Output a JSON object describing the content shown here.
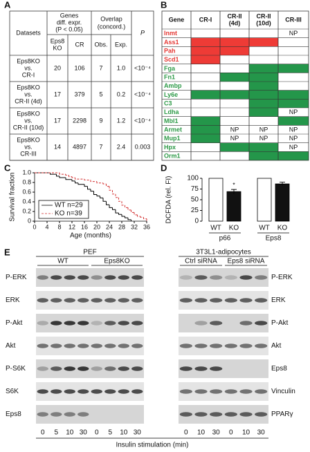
{
  "panel_labels": [
    "A",
    "B",
    "C",
    "D",
    "E"
  ],
  "table_a": {
    "header": {
      "datasets": "Datasets",
      "genes": [
        "Genes",
        "diff. expr.",
        "(P < 0.05)"
      ],
      "overlap": [
        "Overlap",
        "(concord.)"
      ],
      "p": "P",
      "sub": [
        [
          "Eps8",
          "KO"
        ],
        [
          "CR"
        ],
        [
          "Obs."
        ],
        [
          "Exp."
        ]
      ]
    },
    "rows": [
      {
        "dataset": [
          "Eps8KO",
          "vs.",
          "CR-I"
        ],
        "cells": [
          "20",
          "106",
          "7",
          "1.0",
          "<10⁻⁴"
        ]
      },
      {
        "dataset": [
          "Eps8KO",
          "vs.",
          "CR-II (4d)"
        ],
        "cells": [
          "17",
          "379",
          "5",
          "0.2",
          "<10⁻⁴"
        ]
      },
      {
        "dataset": [
          "Eps8KO",
          "vs.",
          "CR-II (10d)"
        ],
        "cells": [
          "17",
          "2298",
          "9",
          "1.2",
          "<10⁻⁴"
        ]
      },
      {
        "dataset": [
          "Eps8KO",
          "vs.",
          "CR-III"
        ],
        "cells": [
          "14",
          "4897",
          "7",
          "2.4",
          "0.003"
        ]
      }
    ]
  },
  "table_b": {
    "header": [
      [
        "Gene"
      ],
      [
        "CR-I"
      ],
      [
        "CR-II",
        "(4d)"
      ],
      [
        "CR-II",
        "(10d)"
      ],
      [
        "CR-III"
      ]
    ],
    "rows": [
      {
        "gene": "Inmt",
        "color": "#e53935",
        "cells": [
          null,
          null,
          null,
          "NP"
        ],
        "fills": [
          null,
          null,
          null,
          null
        ]
      },
      {
        "gene": "Ass1",
        "color": "#e53935",
        "cells": [
          null,
          null,
          null,
          null
        ],
        "fills": [
          "#ee3b36",
          "#ee3b36",
          "#ee3b36",
          null
        ]
      },
      {
        "gene": "Pah",
        "color": "#e53935",
        "cells": [
          null,
          null,
          null,
          null
        ],
        "fills": [
          "#ee3b36",
          "#ee3b36",
          null,
          null
        ]
      },
      {
        "gene": "Scd1",
        "color": "#e53935",
        "cells": [
          null,
          null,
          null,
          null
        ],
        "fills": [
          "#ee3b36",
          null,
          null,
          null
        ]
      },
      {
        "gene": "Fga",
        "color": "#2e9a48",
        "cells": [
          null,
          null,
          null,
          null
        ],
        "fills": [
          null,
          null,
          "#24964a",
          "#24964a"
        ]
      },
      {
        "gene": "Fn1",
        "color": "#2e9a48",
        "cells": [
          null,
          null,
          null,
          null
        ],
        "fills": [
          null,
          "#24964a",
          "#24964a",
          null
        ]
      },
      {
        "gene": "Ambp",
        "color": "#2e9a48",
        "cells": [
          null,
          null,
          null,
          null
        ],
        "fills": [
          null,
          null,
          "#24964a",
          null
        ]
      },
      {
        "gene": "Ly6e",
        "color": "#2e9a48",
        "cells": [
          null,
          null,
          null,
          null
        ],
        "fills": [
          "#24964a",
          "#24964a",
          "#24964a",
          "#24964a"
        ]
      },
      {
        "gene": "C3",
        "color": "#2e9a48",
        "cells": [
          null,
          null,
          null,
          null
        ],
        "fills": [
          null,
          null,
          "#24964a",
          "#24964a"
        ]
      },
      {
        "gene": "Ldha",
        "color": "#2e9a48",
        "cells": [
          null,
          null,
          null,
          "NP"
        ],
        "fills": [
          null,
          null,
          "#24964a",
          null
        ]
      },
      {
        "gene": "Mbl1",
        "color": "#2e9a48",
        "cells": [
          null,
          null,
          null,
          null
        ],
        "fills": [
          "#24964a",
          null,
          null,
          "#24964a"
        ]
      },
      {
        "gene": "Armet",
        "color": "#2e9a48",
        "cells": [
          null,
          "NP",
          "NP",
          "NP"
        ],
        "fills": [
          "#24964a",
          null,
          null,
          null
        ]
      },
      {
        "gene": "Mup1",
        "color": "#2e9a48",
        "cells": [
          null,
          "NP",
          "NP",
          "NP"
        ],
        "fills": [
          "#24964a",
          null,
          null,
          null
        ]
      },
      {
        "gene": "Hpx",
        "color": "#2e9a48",
        "cells": [
          null,
          null,
          null,
          "NP"
        ],
        "fills": [
          null,
          "#24964a",
          "#24964a",
          null
        ]
      },
      {
        "gene": "Orm1",
        "color": "#2e9a48",
        "cells": [
          null,
          null,
          null,
          null
        ],
        "fills": [
          null,
          null,
          "#24964a",
          "#24964a"
        ]
      }
    ]
  },
  "chart_data": [
    {
      "type": "line",
      "step": true,
      "xlabel": "Age (months)",
      "ylabel": "Survival fraction",
      "xlim": [
        0,
        36
      ],
      "xticks": [
        0,
        4,
        8,
        12,
        16,
        20,
        24,
        28,
        32,
        36
      ],
      "ylim": [
        0,
        1
      ],
      "yticks": [
        0,
        0.2,
        0.4,
        0.6,
        0.8,
        {
          "value": 1,
          "label": "1.0"
        }
      ],
      "legend": "bottom-left",
      "series": [
        {
          "name": "WT n=29",
          "color": "#000000",
          "dash": false,
          "x": [
            0,
            5,
            7,
            8,
            10,
            12,
            13,
            14,
            16,
            17,
            18,
            19,
            20,
            21,
            22,
            23,
            24,
            25,
            26,
            27,
            28,
            29,
            30,
            31
          ],
          "values": [
            1.0,
            0.97,
            0.93,
            0.9,
            0.86,
            0.83,
            0.79,
            0.76,
            0.72,
            0.66,
            0.62,
            0.55,
            0.52,
            0.48,
            0.41,
            0.34,
            0.28,
            0.24,
            0.17,
            0.14,
            0.1,
            0.07,
            0.03,
            0
          ]
        },
        {
          "name": "KO n=39",
          "color": "#d32f2f",
          "dash": true,
          "x": [
            0,
            8,
            10,
            11,
            12,
            13,
            16,
            18,
            20,
            22,
            23,
            24,
            25,
            26,
            27,
            28,
            29,
            30,
            31,
            32,
            33,
            34,
            35,
            36
          ],
          "values": [
            1.0,
            0.97,
            0.95,
            0.92,
            0.9,
            0.87,
            0.85,
            0.82,
            0.79,
            0.77,
            0.72,
            0.64,
            0.56,
            0.49,
            0.41,
            0.33,
            0.28,
            0.23,
            0.18,
            0.13,
            0.1,
            0.08,
            0.05,
            0
          ]
        }
      ]
    },
    {
      "type": "bar",
      "ylabel": "DCFDA (rel. FI)",
      "groups": [
        "p66",
        "Eps8"
      ],
      "categories": [
        "WT",
        "KO",
        "WT",
        "KO"
      ],
      "values": [
        100,
        69,
        100,
        87
      ],
      "errors": [
        null,
        5,
        null,
        4
      ],
      "colors": [
        "#ffffff",
        "#111111",
        "#ffffff",
        "#111111"
      ],
      "ylim": [
        0,
        100
      ],
      "yticks": [
        0,
        25,
        50,
        75,
        100
      ],
      "annotation": "*"
    }
  ],
  "panel_e": {
    "left": {
      "title": "PEF",
      "groups": [
        "WT",
        "Eps8KO"
      ],
      "rows": [
        "P-ERK",
        "ERK",
        "P-Akt",
        "Akt",
        "P-S6K",
        "S6K",
        "Eps8"
      ],
      "lanes": [
        0,
        5,
        10,
        30,
        0,
        5,
        10,
        30
      ]
    },
    "right": {
      "title": "3T3L1-adipocytes",
      "groups": [
        "Ctrl siRNA",
        "Eps8 siRNA"
      ],
      "rows": [
        "P-ERK",
        "ERK",
        "P-Akt",
        "Akt",
        "Eps8",
        "Vinculin",
        "PPARγ"
      ],
      "lanes": [
        0,
        10,
        30,
        0,
        10,
        30
      ]
    },
    "xlabel": "Insulin stimulation (min)"
  }
}
